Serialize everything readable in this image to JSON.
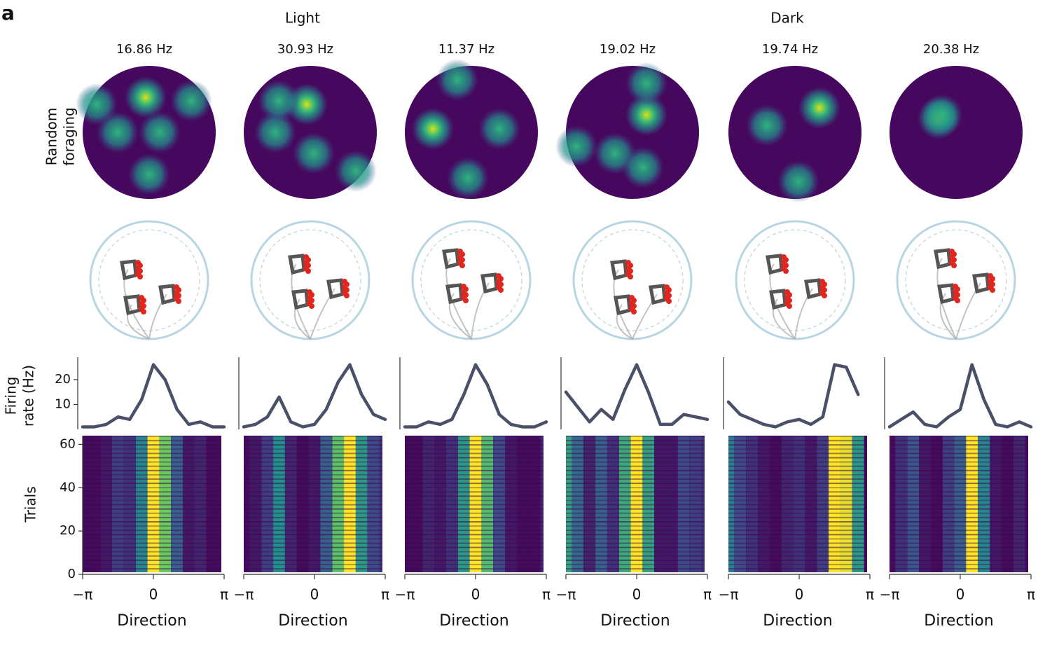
{
  "panel_label": "a",
  "conditions": [
    "Light",
    "Dark"
  ],
  "row_label": [
    "Random",
    "foraging"
  ],
  "chart_data": [
    {
      "type": "line",
      "title": "16.86 Hz",
      "color": "#4a5068",
      "x": [
        -3.14,
        -2.62,
        -2.09,
        -1.57,
        -1.05,
        -0.52,
        0,
        0.52,
        1.05,
        1.57,
        2.09,
        2.62,
        3.14
      ],
      "values": [
        1,
        1,
        2,
        5,
        4,
        12,
        26,
        20,
        8,
        2,
        3,
        1,
        1
      ],
      "xlim": [
        -3.14,
        3.14
      ],
      "ylim": [
        0,
        29
      ],
      "yticks": [
        10,
        20
      ],
      "ylabel": [
        "Firing",
        "rate (Hz)"
      ]
    },
    {
      "type": "line",
      "title": "30.93 Hz",
      "color": "#4a5068",
      "x": [
        -3.14,
        -2.62,
        -2.09,
        -1.57,
        -1.05,
        -0.52,
        0,
        0.52,
        1.05,
        1.57,
        2.09,
        2.62,
        3.14
      ],
      "values": [
        1,
        2,
        5,
        13,
        3,
        1,
        2,
        8,
        19,
        26,
        14,
        6,
        4
      ],
      "xlim": [
        -3.14,
        3.14
      ],
      "ylim": [
        0,
        29
      ]
    },
    {
      "type": "line",
      "title": "11.37 Hz",
      "color": "#4a5068",
      "x": [
        -3.14,
        -2.62,
        -2.09,
        -1.57,
        -1.05,
        -0.52,
        0,
        0.52,
        1.05,
        1.57,
        2.09,
        2.62,
        3.14
      ],
      "values": [
        1,
        1,
        3,
        2,
        4,
        14,
        26,
        18,
        6,
        2,
        1,
        1,
        3
      ],
      "xlim": [
        -3.14,
        3.14
      ],
      "ylim": [
        0,
        29
      ]
    },
    {
      "type": "line",
      "title": "19.02 Hz",
      "color": "#4a5068",
      "x": [
        -3.14,
        -2.62,
        -2.09,
        -1.57,
        -1.05,
        -0.52,
        0,
        0.52,
        1.05,
        1.57,
        2.09,
        2.62,
        3.14
      ],
      "values": [
        15,
        9,
        3,
        8,
        4,
        16,
        26,
        15,
        2,
        2,
        6,
        5,
        4
      ],
      "xlim": [
        -3.14,
        3.14
      ],
      "ylim": [
        0,
        29
      ]
    },
    {
      "type": "line",
      "title": "19.74 Hz",
      "color": "#4a5068",
      "x": [
        -3.14,
        -2.62,
        -2.09,
        -1.57,
        -1.05,
        -0.52,
        0,
        0.52,
        1.05,
        1.57,
        2.09,
        2.62,
        3.14
      ],
      "values": [
        11,
        6,
        4,
        2,
        1,
        3,
        4,
        2,
        5,
        26,
        25,
        14,
        null
      ],
      "xlim": [
        -3.14,
        3.14
      ],
      "ylim": [
        0,
        29
      ]
    },
    {
      "type": "line",
      "title": "20.38 Hz",
      "color": "#4a5068",
      "x": [
        -3.14,
        -2.62,
        -2.09,
        -1.57,
        -1.05,
        -0.52,
        0,
        0.52,
        1.05,
        1.57,
        2.09,
        2.62,
        3.14
      ],
      "values": [
        1,
        4,
        7,
        2,
        1,
        5,
        8,
        26,
        12,
        2,
        1,
        3,
        1
      ],
      "xlim": [
        -3.14,
        3.14
      ],
      "ylim": [
        0,
        29
      ]
    },
    {
      "type": "heatmap",
      "colormap": "viridis",
      "x": [
        -3.14,
        -2.62,
        -2.09,
        -1.57,
        -1.05,
        -0.52,
        0,
        0.52,
        1.05,
        1.57,
        2.09,
        2.62,
        3.14
      ],
      "values": [
        1,
        1,
        2,
        5,
        4,
        12,
        26,
        20,
        8,
        2,
        3,
        1,
        1
      ],
      "xlim": [
        -3.14,
        3.14
      ],
      "ylim": [
        0,
        64
      ],
      "yticks": [
        0,
        20,
        40,
        60
      ],
      "ylabel": "Trials",
      "xticks": [
        {
          "value": -3.14,
          "label": "−π"
        },
        0,
        {
          "value": 3.14,
          "label": "π"
        }
      ],
      "xlabel": "Direction"
    },
    {
      "type": "heatmap",
      "colormap": "viridis",
      "x": [
        -3.14,
        -2.62,
        -2.09,
        -1.57,
        -1.05,
        -0.52,
        0,
        0.52,
        1.05,
        1.57,
        2.09,
        2.62,
        3.14
      ],
      "values": [
        1,
        2,
        5,
        13,
        3,
        1,
        2,
        8,
        19,
        26,
        14,
        6,
        4
      ],
      "xlim": [
        -3.14,
        3.14
      ],
      "ylim": [
        0,
        64
      ],
      "xticks": [
        {
          "value": -3.14,
          "label": "−π"
        },
        0,
        {
          "value": 3.14,
          "label": "π"
        }
      ],
      "xlabel": "Direction"
    },
    {
      "type": "heatmap",
      "colormap": "viridis",
      "x": [
        -3.14,
        -2.62,
        -2.09,
        -1.57,
        -1.05,
        -0.52,
        0,
        0.52,
        1.05,
        1.57,
        2.09,
        2.62,
        3.14
      ],
      "values": [
        1,
        1,
        3,
        2,
        4,
        14,
        26,
        18,
        6,
        2,
        1,
        1,
        3
      ],
      "xlim": [
        -3.14,
        3.14
      ],
      "ylim": [
        0,
        64
      ],
      "xticks": [
        {
          "value": -3.14,
          "label": "−π"
        },
        0,
        {
          "value": 3.14,
          "label": "π"
        }
      ],
      "xlabel": "Direction"
    },
    {
      "type": "heatmap",
      "colormap": "viridis",
      "x": [
        -3.14,
        -2.62,
        -2.09,
        -1.57,
        -1.05,
        -0.52,
        0,
        0.52,
        1.05,
        1.57,
        2.09,
        2.62,
        3.14
      ],
      "values": [
        15,
        9,
        3,
        8,
        4,
        16,
        26,
        15,
        2,
        2,
        6,
        5,
        4
      ],
      "xlim": [
        -3.14,
        3.14
      ],
      "ylim": [
        0,
        64
      ],
      "xticks": [
        {
          "value": -3.14,
          "label": "−π"
        },
        0,
        {
          "value": 3.14,
          "label": "π"
        }
      ],
      "xlabel": "Direction"
    },
    {
      "type": "heatmap",
      "colormap": "viridis",
      "x": [
        -3.14,
        -2.62,
        -2.09,
        -1.57,
        -1.05,
        -0.52,
        0,
        0.52,
        1.05,
        1.57,
        2.09,
        2.62,
        3.14
      ],
      "values": [
        11,
        6,
        4,
        2,
        1,
        3,
        4,
        2,
        5,
        26,
        25,
        14,
        null
      ],
      "xlim": [
        -3.14,
        3.14
      ],
      "ylim": [
        0,
        64
      ],
      "xticks": [
        {
          "value": -3.14,
          "label": "−π"
        },
        0,
        {
          "value": 3.14,
          "label": "π"
        }
      ],
      "xlabel": "Direction"
    },
    {
      "type": "heatmap",
      "colormap": "viridis",
      "x": [
        -3.14,
        -2.62,
        -2.09,
        -1.57,
        -1.05,
        -0.52,
        0,
        0.52,
        1.05,
        1.57,
        2.09,
        2.62,
        3.14
      ],
      "values": [
        1,
        4,
        7,
        2,
        1,
        5,
        8,
        26,
        12,
        2,
        1,
        3,
        1
      ],
      "xlim": [
        -3.14,
        3.14
      ],
      "ylim": [
        0,
        64
      ],
      "xticks": [
        {
          "value": -3.14,
          "label": "−π"
        },
        0,
        {
          "value": 3.14,
          "label": "π"
        }
      ],
      "xlabel": "Direction"
    }
  ]
}
